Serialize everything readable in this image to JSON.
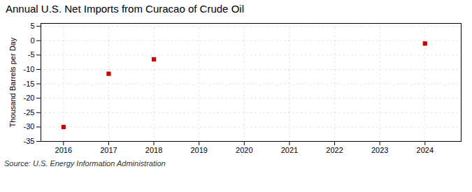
{
  "chart_data": {
    "type": "scatter",
    "title": "Annual U.S. Net Imports from Curacao of Crude Oil",
    "ylabel": "Thousand Barrels per Day",
    "source": "Source: U.S. Energy Information Administration",
    "x": [
      2016,
      2017,
      2018,
      2024
    ],
    "values": [
      -30,
      -11.5,
      -6.5,
      -1.0
    ],
    "color": "#cc0000",
    "marker": "square",
    "xlim": [
      2015.5,
      2024.8
    ],
    "xticks": [
      2016,
      2017,
      2018,
      2019,
      2020,
      2021,
      2022,
      2023,
      2024
    ],
    "ylim": [
      -35,
      6
    ],
    "yticks": [
      5,
      0,
      -5,
      -10,
      -15,
      -20,
      -25,
      -30,
      -35
    ],
    "grid": true
  }
}
